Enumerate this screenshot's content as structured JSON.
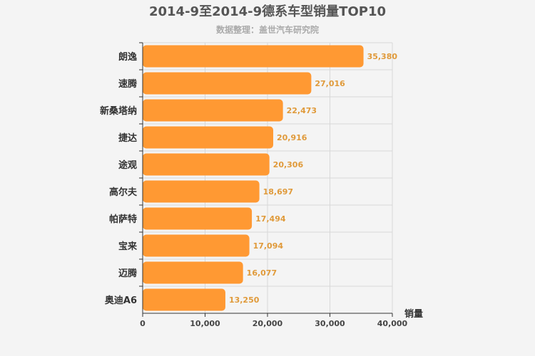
{
  "chart_data": {
    "type": "bar",
    "orientation": "horizontal",
    "title": "2014-9至2014-9德系车型销量TOP10",
    "subtitle": "数据整理：盖世汽车研究院",
    "xlabel": "销量",
    "ylabel": "",
    "categories": [
      "朗逸",
      "速腾",
      "新桑塔纳",
      "捷达",
      "途观",
      "高尔夫",
      "帕萨特",
      "宝来",
      "迈腾",
      "奥迪A6"
    ],
    "values": [
      35380,
      27016,
      22473,
      20916,
      20306,
      18697,
      17494,
      17094,
      16077,
      13250
    ],
    "value_labels": [
      "35,380",
      "27,016",
      "22,473",
      "20,916",
      "20,306",
      "18,697",
      "17,494",
      "17,094",
      "16,077",
      "13,250"
    ],
    "xlim": [
      0,
      40000
    ],
    "ticks": [
      0,
      10000,
      20000,
      30000,
      40000
    ],
    "tick_labels": [
      "0",
      "10,000",
      "20,000",
      "30,000",
      "40,000"
    ],
    "grid": true,
    "bar_color": "#ff9933",
    "label_color": "#e09a3a"
  }
}
